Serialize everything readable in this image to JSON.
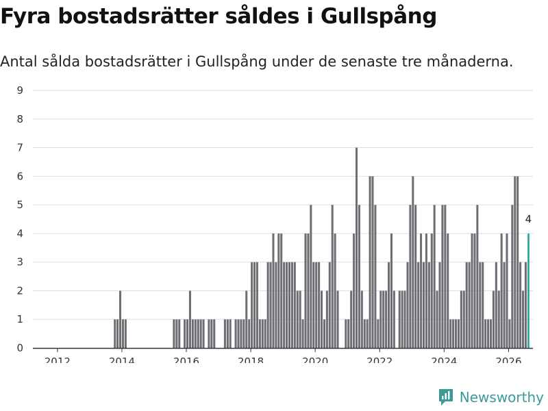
{
  "title": "Fyra bostadsrätter såldes i Gullspång",
  "subtitle": "Antal sålda bostadsrätter i Gullspång under de senaste tre månaderna.",
  "brand": {
    "name": "Newsworthy"
  },
  "colors": {
    "bar": "#6d6d74",
    "highlight": "#2a9d97",
    "grid": "#dddddd",
    "axis": "#333333"
  },
  "chart_data": {
    "type": "bar",
    "title": "Fyra bostadsrätter såldes i Gullspång",
    "xlabel": "",
    "ylabel": "",
    "ylim": [
      0,
      9
    ],
    "yticks": [
      0,
      1,
      2,
      3,
      4,
      5,
      6,
      7,
      8,
      9
    ],
    "xticks": [
      "2012",
      "2014",
      "2016",
      "2018",
      "2020",
      "2022",
      "2024",
      "2026"
    ],
    "x_start": "2011-05",
    "x_end": "2026-08",
    "start_year": 2011,
    "start_month": 5,
    "last_value_label": "4",
    "values": [
      0,
      0,
      0,
      0,
      0,
      0,
      0,
      0,
      0,
      0,
      0,
      0,
      0,
      0,
      0,
      0,
      0,
      0,
      0,
      0,
      0,
      0,
      0,
      0,
      0,
      0,
      0,
      0,
      0,
      1,
      1,
      2,
      1,
      1,
      0,
      0,
      0,
      0,
      0,
      0,
      0,
      0,
      0,
      0,
      0,
      0,
      0,
      0,
      0,
      0,
      0,
      1,
      1,
      1,
      0,
      1,
      1,
      2,
      1,
      1,
      1,
      1,
      1,
      0,
      1,
      1,
      1,
      0,
      0,
      0,
      1,
      1,
      1,
      0,
      1,
      1,
      1,
      1,
      2,
      1,
      3,
      3,
      3,
      1,
      1,
      1,
      3,
      3,
      4,
      3,
      4,
      4,
      3,
      3,
      3,
      3,
      3,
      2,
      2,
      1,
      4,
      4,
      5,
      3,
      3,
      3,
      2,
      1,
      2,
      3,
      5,
      4,
      2,
      0,
      0,
      1,
      1,
      2,
      4,
      7,
      5,
      2,
      1,
      1,
      6,
      6,
      5,
      1,
      2,
      2,
      2,
      3,
      4,
      2,
      0,
      2,
      2,
      2,
      3,
      5,
      6,
      5,
      3,
      4,
      3,
      4,
      3,
      4,
      5,
      2,
      3,
      5,
      5,
      4,
      1,
      1,
      1,
      1,
      2,
      2,
      3,
      3,
      4,
      4,
      5,
      3,
      3,
      1,
      1,
      1,
      2,
      3,
      2,
      4,
      3,
      4,
      1,
      5,
      6,
      6,
      3,
      2,
      3,
      4
    ]
  }
}
